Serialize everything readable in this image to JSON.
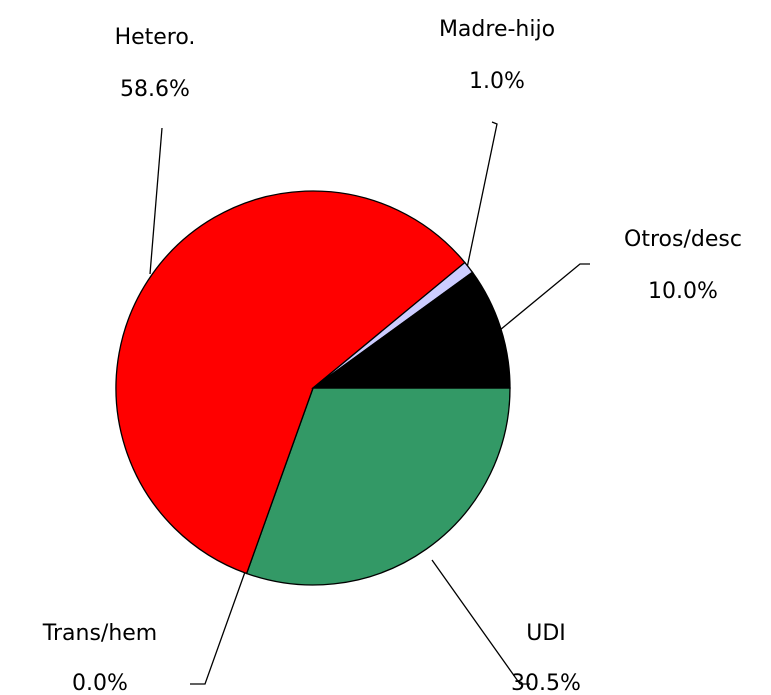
{
  "chart_data": {
    "type": "pie",
    "categories": [
      "UDI",
      "Trans/hem",
      "Hetero.",
      "Madre-hijo",
      "Otros/desc"
    ],
    "values": [
      30.5,
      0.0,
      58.6,
      1.0,
      10.0
    ],
    "value_labels": [
      "30.5%",
      "0.0%",
      "58.6%",
      "1.0%",
      "10.0%"
    ],
    "colors": [
      "#339966",
      "#ffff00",
      "#ff0000",
      "#ccccff",
      "#000000"
    ]
  }
}
